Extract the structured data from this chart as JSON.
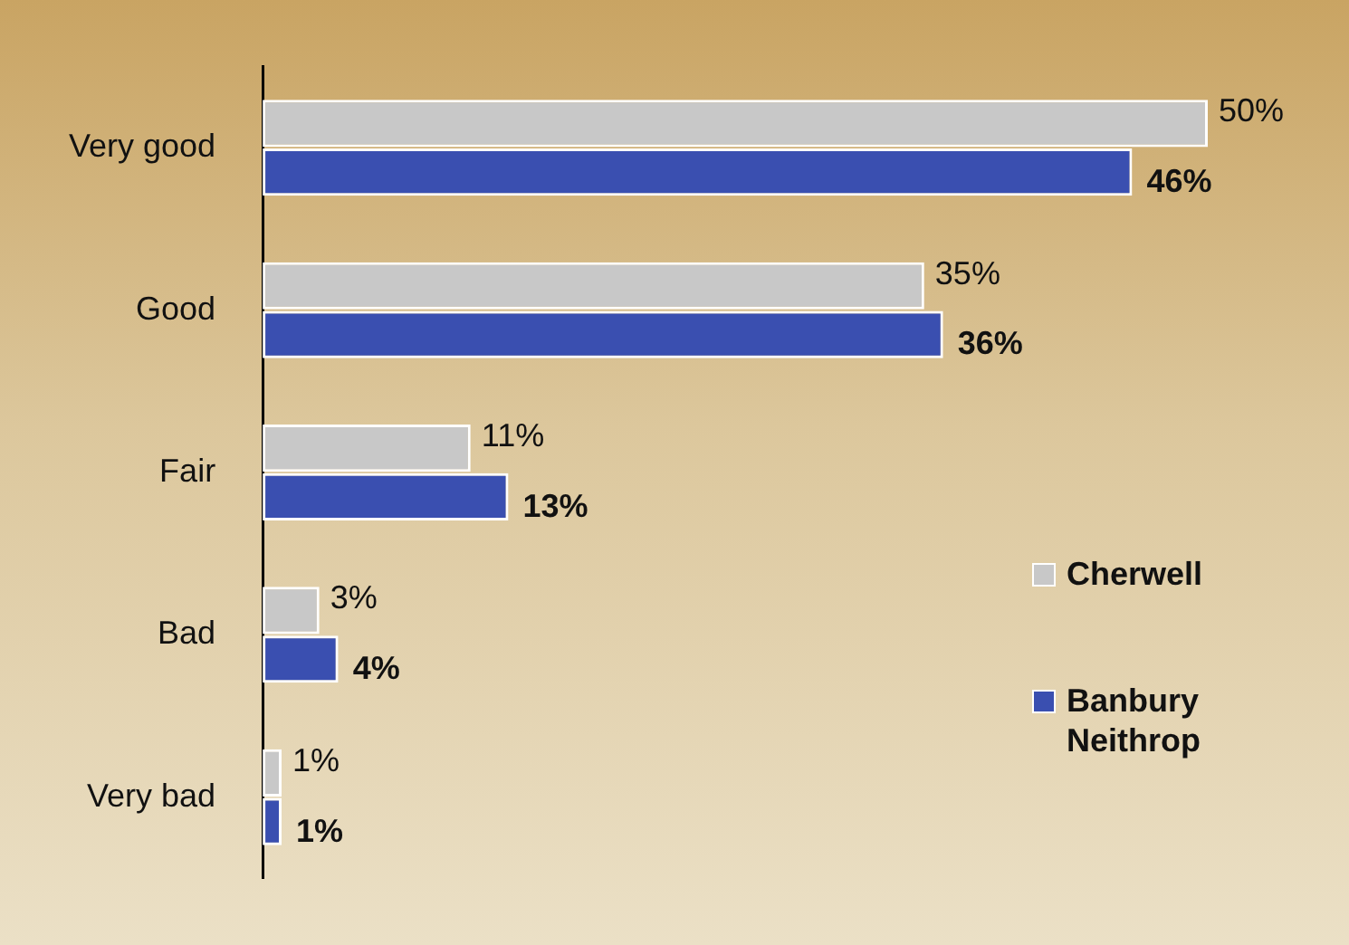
{
  "chart_data": {
    "type": "bar",
    "orientation": "horizontal",
    "categories": [
      "Very good",
      "Good",
      "Fair",
      "Bad",
      "Very bad"
    ],
    "series": [
      {
        "name": "Cherwell",
        "color": "#c8c8c8",
        "values": [
          50,
          35,
          11,
          3,
          1
        ],
        "value_labels": [
          "50%",
          "35%",
          "11%",
          "3%",
          "1%"
        ]
      },
      {
        "name": "Banbury Neithrop",
        "color": "#3a4fb0",
        "values": [
          46,
          36,
          13,
          4,
          1
        ],
        "value_labels": [
          "46%",
          "36%",
          "13%",
          "4%",
          "1%"
        ]
      }
    ],
    "tick_labels": "y",
    "grid": false,
    "legend": "right"
  }
}
